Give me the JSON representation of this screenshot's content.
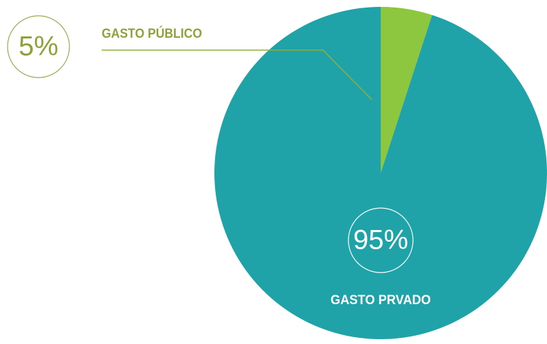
{
  "chart_data": {
    "type": "pie",
    "categories": [
      "GASTO PÚBLICO",
      "GASTO PRVADO"
    ],
    "values": [
      5,
      95
    ],
    "value_labels": [
      "5%",
      "95%"
    ],
    "colors": [
      "#8dc63f",
      "#1fa3a8"
    ]
  }
}
